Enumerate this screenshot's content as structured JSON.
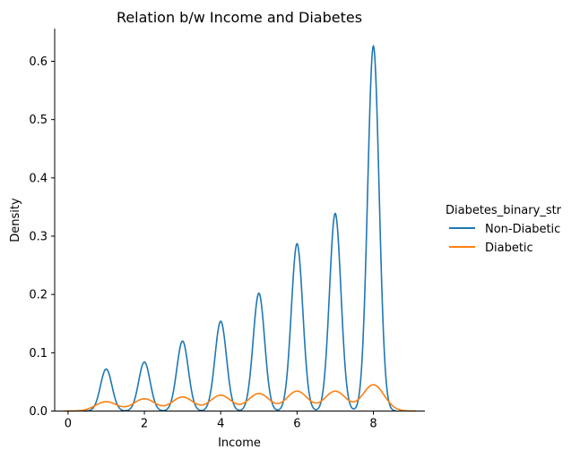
{
  "chart_data": {
    "type": "line",
    "title": "Relation b/w Income and Diabetes",
    "xlabel": "Income",
    "ylabel": "Density",
    "xlim": [
      -0.35,
      9.35
    ],
    "ylim": [
      0.0,
      0.656
    ],
    "xticks": [
      0,
      2,
      4,
      6,
      8
    ],
    "yticks": [
      0.0,
      0.1,
      0.2,
      0.3,
      0.4,
      0.5,
      0.6
    ],
    "ytick_labels": [
      "0.0",
      "0.1",
      "0.2",
      "0.3",
      "0.4",
      "0.5",
      "0.6"
    ],
    "grid": false,
    "legend": {
      "title": "Diabetes_binary_str",
      "placement": "right-outside"
    },
    "series": [
      {
        "name": "Non-Diabetic",
        "color": "#1f77b4",
        "peaks": [
          {
            "x": 1,
            "y": 0.072
          },
          {
            "x": 2,
            "y": 0.084
          },
          {
            "x": 3,
            "y": 0.12
          },
          {
            "x": 4,
            "y": 0.154
          },
          {
            "x": 5,
            "y": 0.202
          },
          {
            "x": 6,
            "y": 0.287
          },
          {
            "x": 7,
            "y": 0.339
          },
          {
            "x": 8,
            "y": 0.626
          }
        ],
        "peak_width": 0.15
      },
      {
        "name": "Diabetic",
        "color": "#ff7f0e",
        "peaks": [
          {
            "x": 1,
            "y": 0.016
          },
          {
            "x": 2,
            "y": 0.021
          },
          {
            "x": 3,
            "y": 0.024
          },
          {
            "x": 4,
            "y": 0.027
          },
          {
            "x": 5,
            "y": 0.03
          },
          {
            "x": 6,
            "y": 0.034
          },
          {
            "x": 7,
            "y": 0.034
          },
          {
            "x": 8,
            "y": 0.045
          }
        ],
        "peak_width": 0.28
      }
    ]
  }
}
